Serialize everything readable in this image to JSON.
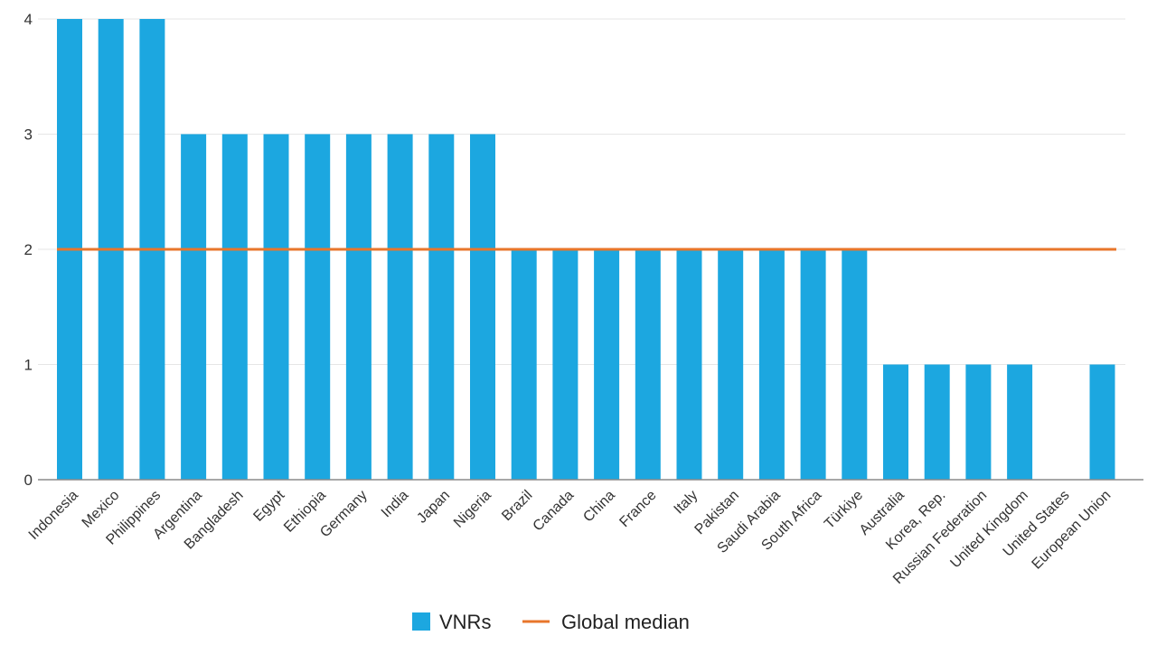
{
  "chart_data": {
    "type": "bar",
    "categories": [
      "Indonesia",
      "Mexico",
      "Philippines",
      "Argentina",
      "Bangladesh",
      "Egypt",
      "Ethiopia",
      "Germany",
      "India",
      "Japan",
      "Nigeria",
      "Brazil",
      "Canada",
      "China",
      "France",
      "Italy",
      "Pakistan",
      "Saudi Arabia",
      "South Africa",
      "Türkiye",
      "Australia",
      "Korea, Rep.",
      "Russian Federation",
      "United Kingdom",
      "United States",
      "European Union"
    ],
    "series": [
      {
        "name": "VNRs",
        "values": [
          4,
          4,
          4,
          3,
          3,
          3,
          3,
          3,
          3,
          3,
          3,
          2,
          2,
          2,
          2,
          2,
          2,
          2,
          2,
          2,
          1,
          1,
          1,
          1,
          0,
          1
        ],
        "color": "#1CA7E0"
      }
    ],
    "reference_line": {
      "name": "Global median",
      "value": 2,
      "color": "#E8762B"
    },
    "yticks": [
      0,
      1,
      2,
      3,
      4
    ],
    "ylim": [
      0,
      4
    ],
    "grid": true,
    "legend_position": "bottom-center"
  }
}
